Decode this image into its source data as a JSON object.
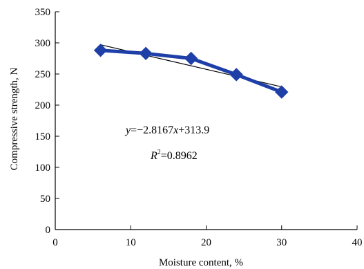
{
  "chart_data": {
    "type": "line",
    "title": "",
    "xlabel": "Moisture content, %",
    "ylabel": "Compressive strength, N",
    "xlim": [
      0,
      40
    ],
    "ylim": [
      0,
      350
    ],
    "x_ticks": [
      0,
      10,
      20,
      30,
      40
    ],
    "y_ticks": [
      0,
      50,
      100,
      150,
      200,
      250,
      300,
      350
    ],
    "grid": false,
    "series": [
      {
        "x": [
          6,
          12,
          18,
          24,
          30
        ],
        "values": [
          288,
          283,
          275,
          249,
          221
        ],
        "color": "#1f3fa8",
        "marker": "diamond"
      }
    ],
    "trendline": {
      "slope": -2.8167,
      "intercept": 313.9,
      "x_range": [
        6,
        30
      ],
      "color": "#000000"
    },
    "annotations": {
      "eq_y": "y",
      "eq_eq": "=−2.8167",
      "eq_x": "x",
      "eq_rest": "+313.9",
      "r2_R": "R",
      "r2_sup": "2",
      "r2_rest": "=0.8962"
    }
  }
}
